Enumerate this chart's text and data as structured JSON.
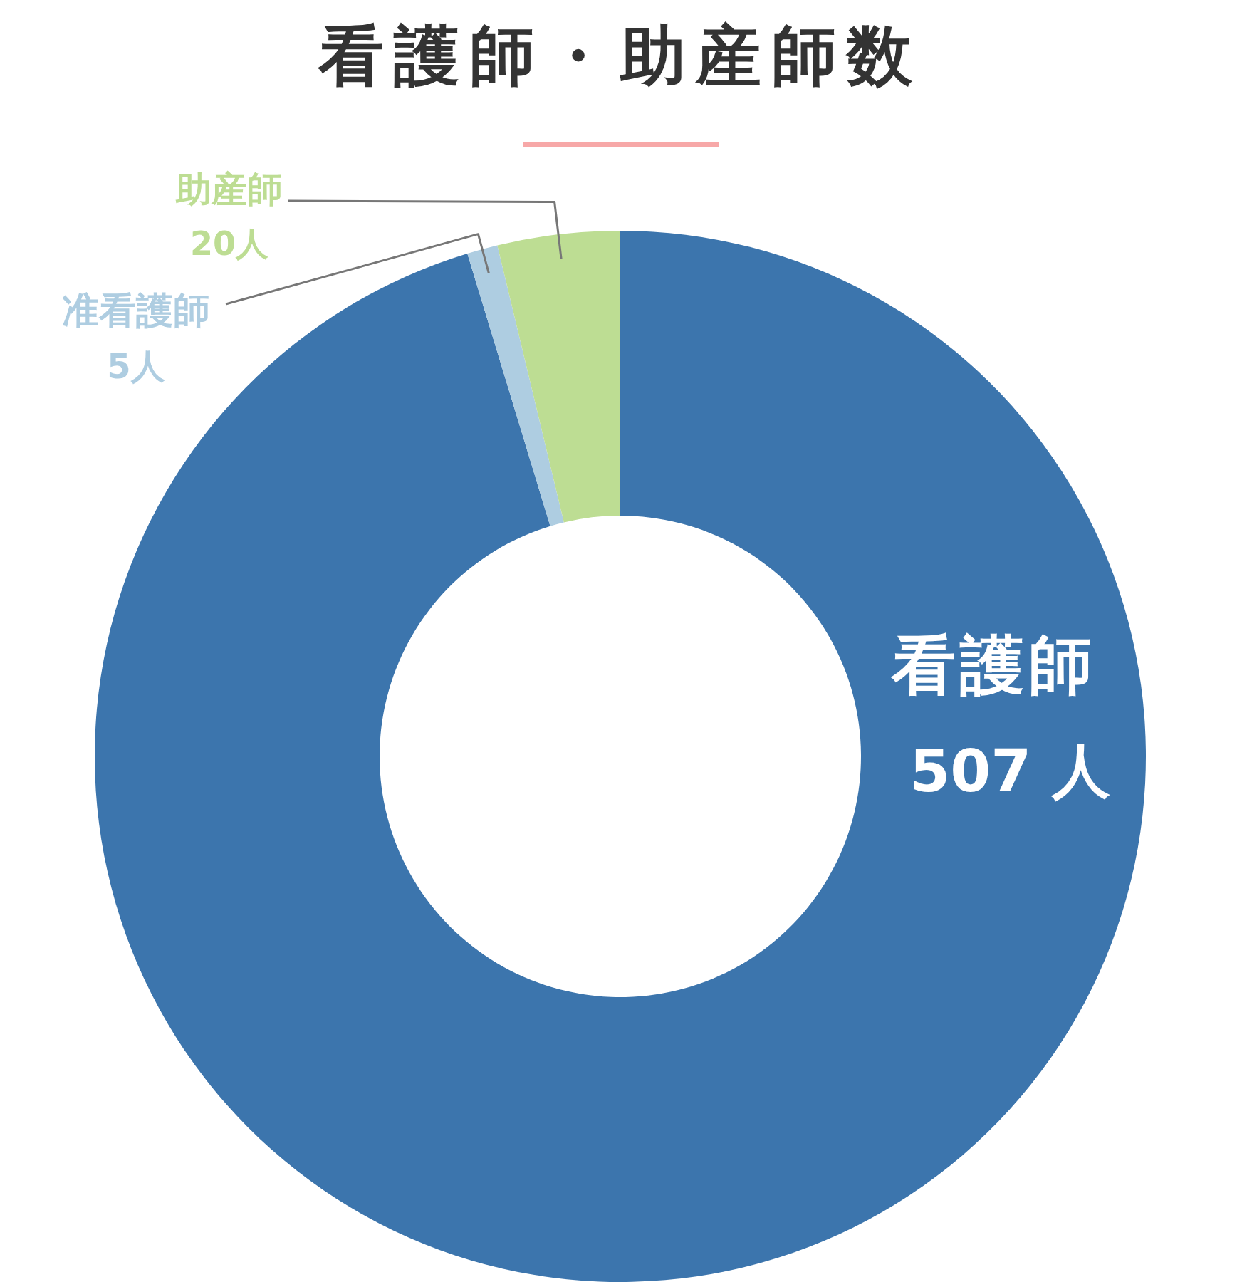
{
  "chart_data": {
    "type": "donut",
    "title": "看護師・助産師数",
    "categories": [
      "看護師",
      "准看護師",
      "助産師"
    ],
    "values": [
      507,
      5,
      20
    ],
    "colors": [
      "#3c75ad",
      "#aecde1",
      "#bddd93"
    ],
    "value_labels": [
      "507 人",
      "5人",
      "20人"
    ]
  }
}
